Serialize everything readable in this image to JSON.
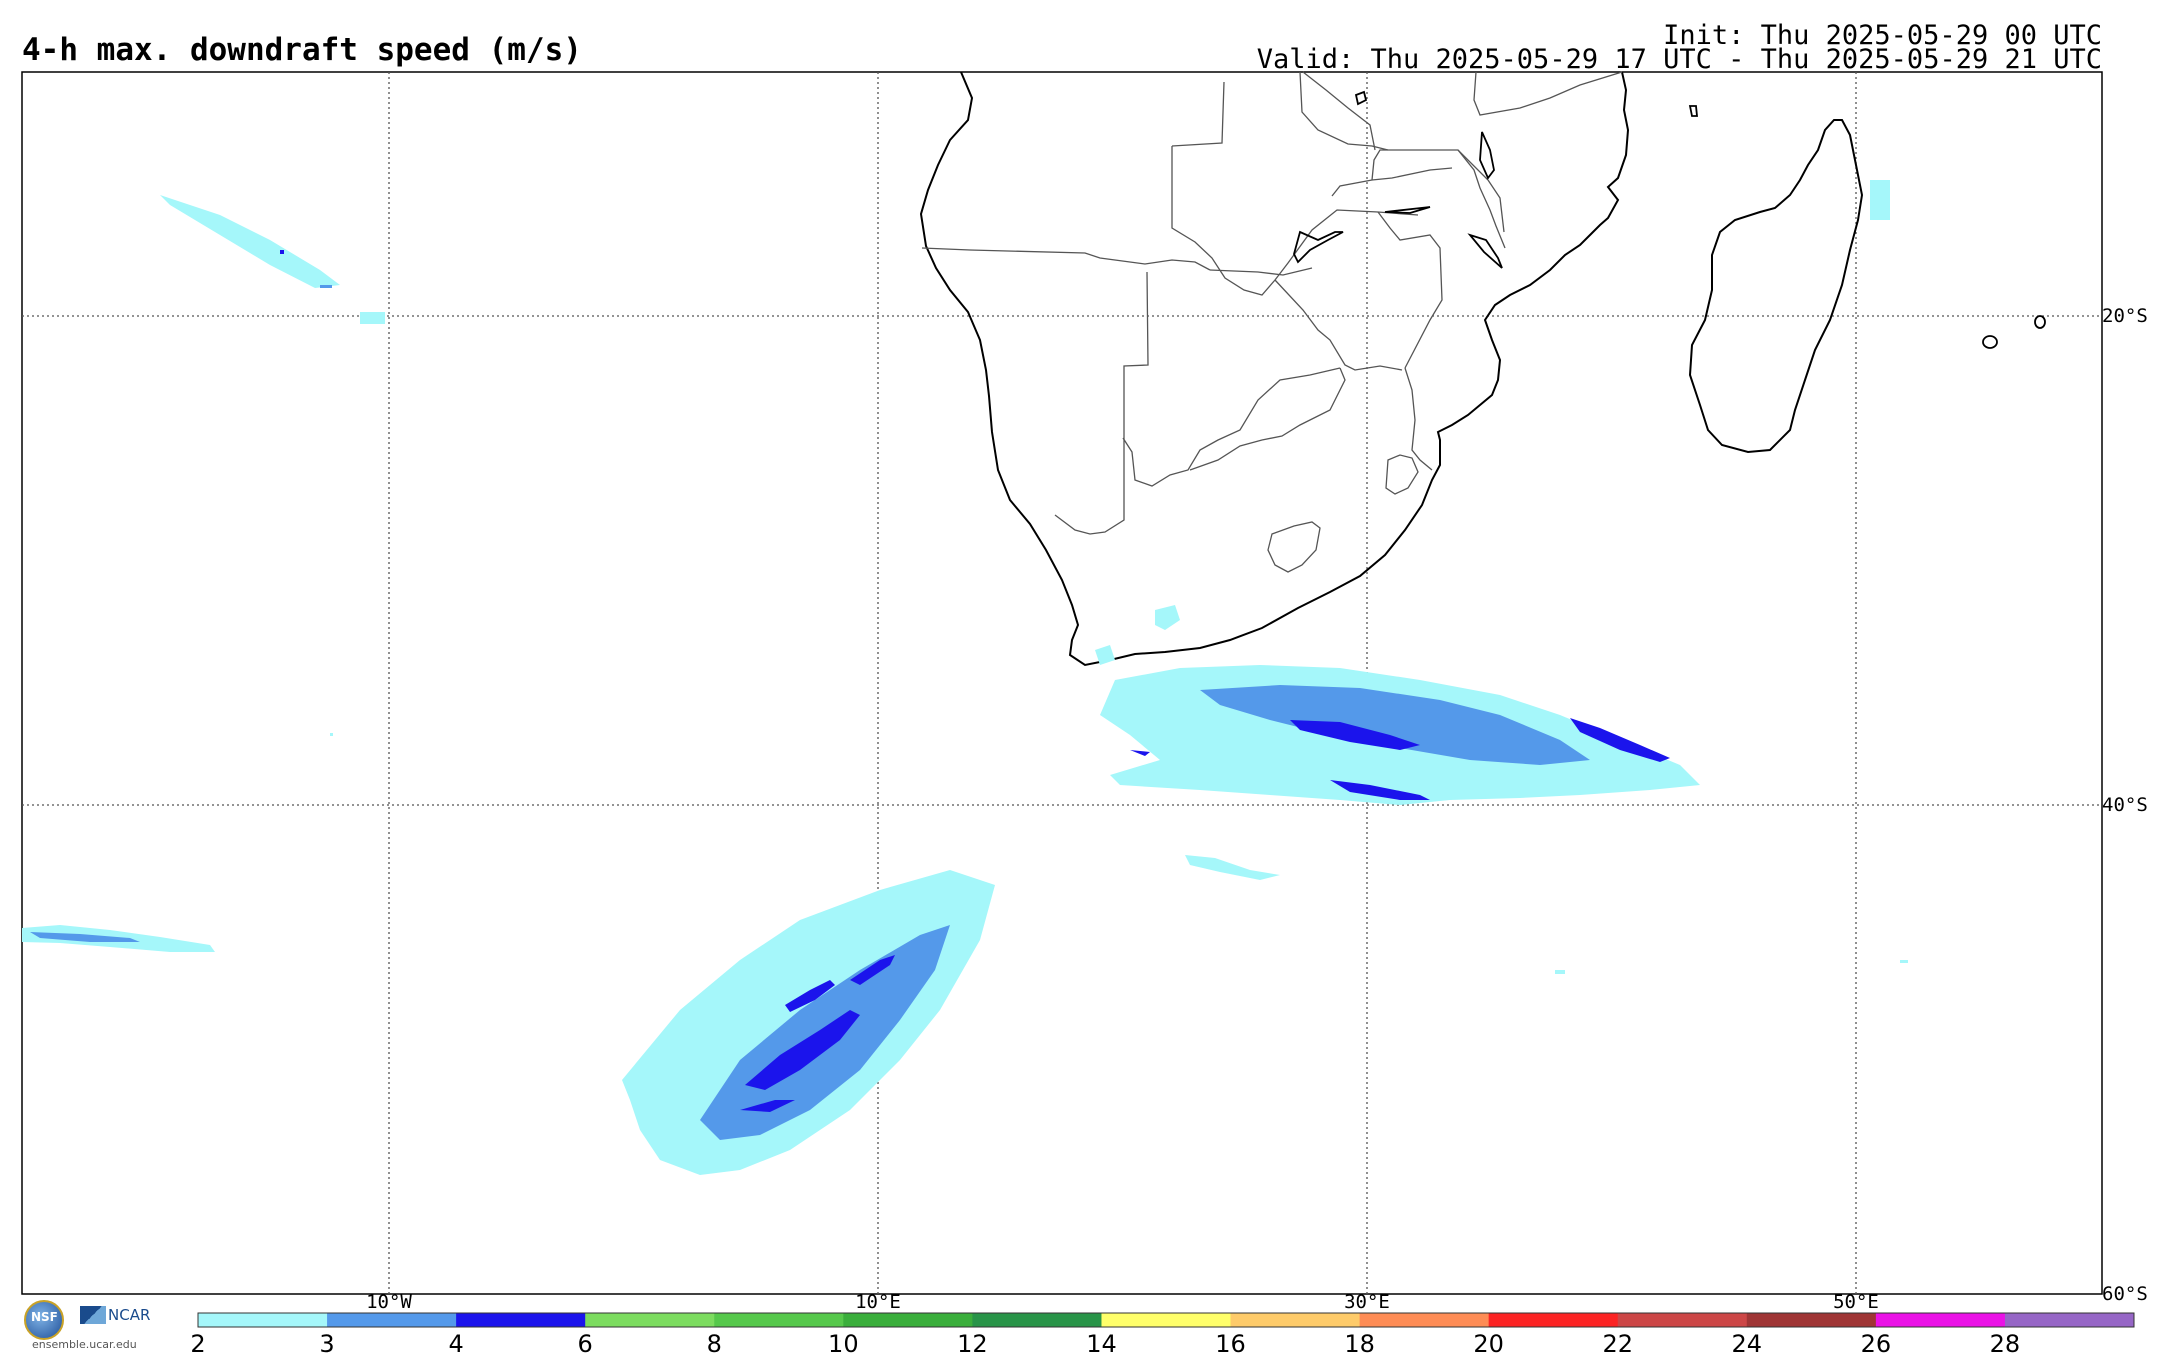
{
  "title": "4-h max. downdraft speed (m/s)",
  "init": "Init: Thu 2025-05-29 00 UTC",
  "valid": "Valid: Thu 2025-05-29 17 UTC - Thu 2025-05-29 21 UTC",
  "graticule": {
    "lon_labels": [
      "10°W",
      "10°E",
      "30°E",
      "50°E"
    ],
    "lat_labels": [
      "20°S",
      "40°S",
      "60°S"
    ]
  },
  "colorbar": {
    "colors": [
      "#a5f7fa",
      "#5499ea",
      "#1b14ec",
      "#7cdc5f",
      "#56c84b",
      "#3aae3b",
      "#289448",
      "#ffff6a",
      "#fecb6a",
      "#fe8c55",
      "#fc2323",
      "#cc4646",
      "#9f3535",
      "#ea12e6",
      "#9666c6"
    ],
    "tick_labels": [
      "2",
      "3",
      "4",
      "6",
      "8",
      "10",
      "12",
      "14",
      "16",
      "18",
      "20",
      "22",
      "24",
      "26",
      "28"
    ]
  },
  "logos": {
    "nsf": "NSF",
    "ncar": "NCAR",
    "site": "ensemble.ucar.edu"
  }
}
